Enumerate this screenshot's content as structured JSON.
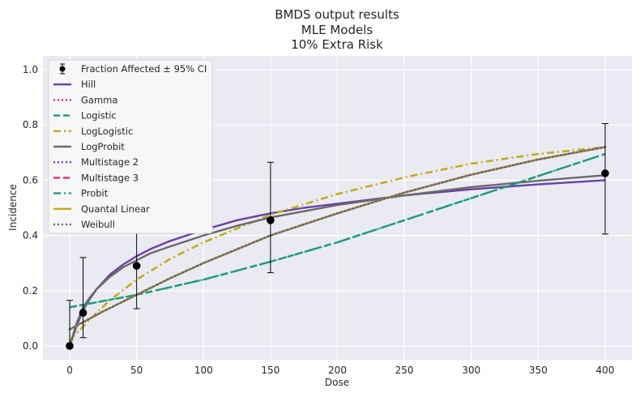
{
  "chart_data": {
    "type": "line",
    "title": [
      "BMDS output results",
      "MLE Models",
      "10% Extra Risk"
    ],
    "xlabel": "Dose",
    "ylabel": "Incidence",
    "xlim": [
      -20,
      420
    ],
    "ylim": [
      -0.05,
      1.05
    ],
    "xticks": [
      0,
      50,
      100,
      150,
      200,
      250,
      300,
      350,
      400
    ],
    "yticks": [
      0.0,
      0.2,
      0.4,
      0.6,
      0.8,
      1.0
    ],
    "grid": true,
    "legend_position": "top-left",
    "observed": {
      "name": "Fraction Affected ± 95% CI",
      "color": "#000000",
      "points": [
        {
          "x": 0,
          "y": 0.0,
          "lower": 0.0,
          "upper": 0.165
        },
        {
          "x": 10,
          "y": 0.12,
          "lower": 0.03,
          "upper": 0.32
        },
        {
          "x": 50,
          "y": 0.29,
          "lower": 0.135,
          "upper": 0.51
        },
        {
          "x": 150,
          "y": 0.455,
          "lower": 0.265,
          "upper": 0.665
        },
        {
          "x": 400,
          "y": 0.625,
          "lower": 0.405,
          "upper": 0.805
        }
      ]
    },
    "series": [
      {
        "name": "Hill",
        "color": "#6a3fa8",
        "dash": "solid",
        "x": [
          0,
          5,
          10,
          15,
          20,
          30,
          40,
          50,
          60,
          75,
          100,
          125,
          150,
          175,
          200,
          250,
          300,
          350,
          400
        ],
        "y": [
          0.0,
          0.07,
          0.13,
          0.17,
          0.205,
          0.258,
          0.295,
          0.325,
          0.35,
          0.38,
          0.42,
          0.455,
          0.48,
          0.5,
          0.515,
          0.545,
          0.567,
          0.585,
          0.6
        ]
      },
      {
        "name": "Gamma",
        "color": "#e0287d",
        "dash": "dotted",
        "x": [
          0,
          25,
          50,
          75,
          100,
          150,
          200,
          250,
          300,
          350,
          400
        ],
        "y": [
          0.06,
          0.125,
          0.185,
          0.245,
          0.3,
          0.4,
          0.48,
          0.555,
          0.62,
          0.675,
          0.72
        ]
      },
      {
        "name": "Logistic",
        "color": "#1a9e77",
        "dash": "dashed",
        "x": [
          0,
          50,
          100,
          150,
          200,
          250,
          300,
          350,
          400
        ],
        "y": [
          0.14,
          0.185,
          0.24,
          0.305,
          0.375,
          0.455,
          0.535,
          0.615,
          0.695
        ]
      },
      {
        "name": "LogLogistic",
        "color": "#c1a90c",
        "dash": "dashdot",
        "x": [
          0,
          5,
          10,
          20,
          30,
          50,
          75,
          100,
          150,
          200,
          250,
          300,
          350,
          400
        ],
        "y": [
          0.02,
          0.045,
          0.07,
          0.12,
          0.165,
          0.24,
          0.315,
          0.375,
          0.475,
          0.55,
          0.61,
          0.66,
          0.695,
          0.72
        ]
      },
      {
        "name": "LogProbit",
        "color": "#6a6a6a",
        "dash": "solid",
        "x": [
          0,
          5,
          10,
          15,
          20,
          30,
          40,
          50,
          60,
          75,
          100,
          125,
          150,
          200,
          250,
          300,
          350,
          400
        ],
        "y": [
          0.0,
          0.08,
          0.14,
          0.175,
          0.205,
          0.25,
          0.285,
          0.31,
          0.335,
          0.36,
          0.4,
          0.435,
          0.465,
          0.51,
          0.545,
          0.575,
          0.598,
          0.618
        ]
      },
      {
        "name": "Multistage 2",
        "color": "#7b3fa0",
        "dash": "dotted",
        "x": [
          0,
          25,
          50,
          75,
          100,
          150,
          200,
          250,
          300,
          350,
          400
        ],
        "y": [
          0.06,
          0.125,
          0.185,
          0.245,
          0.3,
          0.4,
          0.48,
          0.555,
          0.62,
          0.675,
          0.72
        ]
      },
      {
        "name": "Multistage 3",
        "color": "#e0287d",
        "dash": "dashed",
        "x": [
          0,
          25,
          50,
          75,
          100,
          150,
          200,
          250,
          300,
          350,
          400
        ],
        "y": [
          0.06,
          0.125,
          0.185,
          0.245,
          0.3,
          0.4,
          0.48,
          0.555,
          0.62,
          0.675,
          0.72
        ]
      },
      {
        "name": "Probit",
        "color": "#1a9e77",
        "dash": "dashdot",
        "x": [
          0,
          50,
          100,
          150,
          200,
          250,
          300,
          350,
          400
        ],
        "y": [
          0.14,
          0.185,
          0.24,
          0.305,
          0.375,
          0.455,
          0.535,
          0.615,
          0.695
        ]
      },
      {
        "name": "Quantal Linear",
        "color": "#c1a90c",
        "dash": "solid",
        "x": [
          0,
          25,
          50,
          75,
          100,
          150,
          200,
          250,
          300,
          350,
          400
        ],
        "y": [
          0.06,
          0.125,
          0.185,
          0.245,
          0.3,
          0.4,
          0.48,
          0.555,
          0.62,
          0.675,
          0.72
        ]
      },
      {
        "name": "Weibull",
        "color": "#6a6a6a",
        "dash": "dotted",
        "x": [
          0,
          25,
          50,
          75,
          100,
          150,
          200,
          250,
          300,
          350,
          400
        ],
        "y": [
          0.06,
          0.125,
          0.185,
          0.245,
          0.3,
          0.4,
          0.48,
          0.555,
          0.62,
          0.675,
          0.72
        ]
      }
    ]
  }
}
